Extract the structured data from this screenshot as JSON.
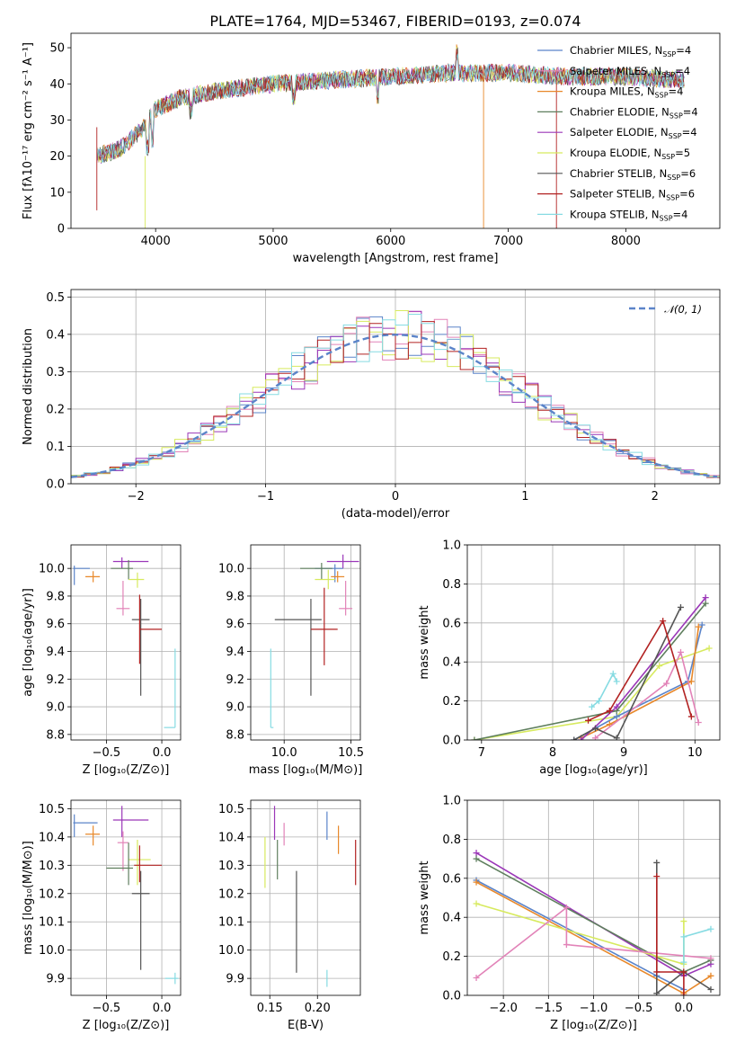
{
  "figure": {
    "title": "PLATE=1764, MJD=53467, FIBERID=0193, z=0.074"
  },
  "colors": {
    "Chabrier MILES": "#5b84c9",
    "Salpeter MILES": "#e283b8",
    "Kroupa MILES": "#e8882a",
    "Chabrier ELODIE": "#5f7f5e",
    "Salpeter ELODIE": "#9b37b8",
    "Kroupa ELODIE": "#d7ea5e",
    "Chabrier STELIB": "#555555",
    "Salpeter STELIB": "#b22222",
    "Kroupa STELIB": "#86dbe2"
  },
  "legend_spectrum": [
    {
      "key": "Chabrier MILES",
      "label": "Chabrier MILES, N",
      "sub": "SSP",
      "tail": "=4"
    },
    {
      "key": "Salpeter MILES",
      "label": "Salpeter MILES, N",
      "sub": "SSP",
      "tail": "=4"
    },
    {
      "key": "Kroupa MILES",
      "label": "Kroupa MILES, N",
      "sub": "SSP",
      "tail": "=4"
    },
    {
      "key": "Chabrier ELODIE",
      "label": "Chabrier ELODIE, N",
      "sub": "SSP",
      "tail": "=4"
    },
    {
      "key": "Salpeter ELODIE",
      "label": "Salpeter ELODIE, N",
      "sub": "SSP",
      "tail": "=4"
    },
    {
      "key": "Kroupa ELODIE",
      "label": "Kroupa ELODIE, N",
      "sub": "SSP",
      "tail": "=5"
    },
    {
      "key": "Chabrier STELIB",
      "label": "Chabrier STELIB, N",
      "sub": "SSP",
      "tail": "=6"
    },
    {
      "key": "Salpeter STELIB",
      "label": "Salpeter STELIB, N",
      "sub": "SSP",
      "tail": "=6"
    },
    {
      "key": "Kroupa STELIB",
      "label": "Kroupa STELIB, N",
      "sub": "SSP",
      "tail": "=4"
    }
  ],
  "chart_data": [
    {
      "id": "spectrum",
      "type": "line",
      "xlabel": "wavelength [Angstrom, rest frame]",
      "ylabel": "Flux [fλ10⁻¹⁷ erg cm⁻² s⁻¹ A⁻¹]",
      "xlim": [
        3280,
        8800
      ],
      "ylim": [
        0,
        54
      ],
      "xticks": [
        4000,
        5000,
        6000,
        7000,
        8000
      ],
      "yticks": [
        0,
        10,
        20,
        30,
        40,
        50
      ],
      "grid": false,
      "legend": "top-right",
      "continuum": {
        "x": [
          3500,
          3700,
          3900,
          4000,
          4200,
          4500,
          5000,
          5500,
          6000,
          6500,
          7000,
          7500,
          8000,
          8500
        ],
        "y": [
          20,
          22,
          28,
          33,
          36,
          38,
          40,
          41,
          42,
          43,
          43,
          42,
          42,
          41
        ]
      }
    },
    {
      "id": "residuals",
      "type": "histogram",
      "xlabel": "(data-model)/error",
      "ylabel": "Normed distribution",
      "xlim": [
        -2.5,
        2.5
      ],
      "ylim": [
        0,
        0.52
      ],
      "xticks": [
        -2,
        -1,
        0,
        1,
        2
      ],
      "yticks": [
        0.0,
        0.1,
        0.2,
        0.3,
        0.4,
        0.5
      ],
      "grid": true,
      "legend": "top-right",
      "legend_label": "𝒩(0, 1)",
      "bin_width": 0.1
    },
    {
      "id": "age-vs-Z",
      "type": "errorbar",
      "xlabel": "Z [log₁₀(Z/Z⊙)]",
      "ylabel": "age  [log₁₀(age/yr)]",
      "xlim": [
        -0.82,
        0.17
      ],
      "ylim": [
        8.76,
        10.17
      ],
      "xticks": [
        -0.5,
        0.0
      ],
      "yticks": [
        8.8,
        9.0,
        9.2,
        9.4,
        9.6,
        9.8,
        10.0
      ],
      "grid": true,
      "points": [
        {
          "key": "Chabrier MILES",
          "x": -0.79,
          "y": 10.0,
          "xe": [
            0.01,
            0.14
          ],
          "ye": [
            0.12,
            0.02
          ]
        },
        {
          "key": "Kroupa MILES",
          "x": -0.62,
          "y": 9.94,
          "xe": [
            0.07,
            0.06
          ],
          "ye": [
            0.04,
            0.04
          ]
        },
        {
          "key": "Salpeter ELODIE",
          "x": -0.36,
          "y": 10.05,
          "xe": [
            0.08,
            0.24
          ],
          "ye": [
            0.05,
            0.03
          ]
        },
        {
          "key": "Chabrier ELODIE",
          "x": -0.3,
          "y": 10.0,
          "xe": [
            0.16,
            0.04
          ],
          "ye": [
            0.08,
            0.06
          ]
        },
        {
          "key": "Kroupa ELODIE",
          "x": -0.22,
          "y": 9.92,
          "xe": [
            0.08,
            0.06
          ],
          "ye": [
            0.06,
            0.05
          ]
        },
        {
          "key": "Salpeter MILES",
          "x": -0.35,
          "y": 9.71,
          "xe": [
            0.06,
            0.06
          ],
          "ye": [
            0.05,
            0.2
          ]
        },
        {
          "key": "Chabrier STELIB",
          "x": -0.19,
          "y": 9.63,
          "xe": [
            0.08,
            0.08
          ],
          "ye": [
            0.55,
            0.15
          ]
        },
        {
          "key": "Salpeter STELIB",
          "x": -0.2,
          "y": 9.56,
          "xe": [
            0.0,
            0.2
          ],
          "ye": [
            0.25,
            0.25
          ]
        },
        {
          "key": "Kroupa STELIB",
          "x": 0.12,
          "y": 8.85,
          "xe": [
            0.1,
            0.0
          ],
          "ye": [
            0.0,
            0.57
          ]
        }
      ]
    },
    {
      "id": "age-vs-mass",
      "type": "errorbar",
      "xlabel": "mass [log₁₀(M/M⊙)]",
      "ylabel": "",
      "xlim": [
        9.75,
        10.57
      ],
      "ylim": [
        8.76,
        10.17
      ],
      "xticks": [
        10.0,
        10.5
      ],
      "yticks": [
        8.8,
        9.0,
        9.2,
        9.4,
        9.6,
        9.8,
        10.0
      ],
      "grid": true,
      "points": [
        {
          "key": "Salpeter ELODIE",
          "x": 10.44,
          "y": 10.05,
          "xe": [
            0.12,
            0.12
          ],
          "ye": [
            0.05,
            0.05
          ]
        },
        {
          "key": "Chabrier MILES",
          "x": 10.38,
          "y": 10.0,
          "xe": [
            0.15,
            0.06
          ],
          "ye": [
            0.1,
            0.03
          ]
        },
        {
          "key": "Chabrier ELODIE",
          "x": 10.28,
          "y": 10.0,
          "xe": [
            0.16,
            0.08
          ],
          "ye": [
            0.08,
            0.04
          ]
        },
        {
          "key": "Kroupa MILES",
          "x": 10.4,
          "y": 9.94,
          "xe": [
            0.05,
            0.05
          ],
          "ye": [
            0.04,
            0.04
          ]
        },
        {
          "key": "Kroupa ELODIE",
          "x": 10.33,
          "y": 9.92,
          "xe": [
            0.1,
            0.05
          ],
          "ye": [
            0.07,
            0.07
          ]
        },
        {
          "key": "Salpeter MILES",
          "x": 10.46,
          "y": 9.71,
          "xe": [
            0.05,
            0.05
          ],
          "ye": [
            0.05,
            0.2
          ]
        },
        {
          "key": "Chabrier STELIB",
          "x": 10.2,
          "y": 9.63,
          "xe": [
            0.27,
            0.08
          ],
          "ye": [
            0.55,
            0.15
          ]
        },
        {
          "key": "Salpeter STELIB",
          "x": 10.3,
          "y": 9.56,
          "xe": [
            0.1,
            0.1
          ],
          "ye": [
            0.26,
            0.3
          ]
        },
        {
          "key": "Kroupa STELIB",
          "x": 9.9,
          "y": 8.85,
          "xe": [
            0.0,
            0.02
          ],
          "ye": [
            0.0,
            0.57
          ]
        }
      ]
    },
    {
      "id": "weight-vs-age",
      "type": "line",
      "xlabel": "age  [log₁₀(age/yr)]",
      "ylabel": "mass weight",
      "xlim": [
        6.8,
        10.35
      ],
      "ylim": [
        0.0,
        1.0
      ],
      "xticks": [
        7,
        8,
        9,
        10
      ],
      "yticks": [
        0.0,
        0.2,
        0.4,
        0.6,
        0.8,
        1.0
      ],
      "grid": true,
      "series": [
        {
          "key": "Kroupa ELODIE",
          "x": [
            6.9,
            8.9,
            9.5,
            10.2
          ],
          "y": [
            0.0,
            0.12,
            0.38,
            0.47
          ]
        },
        {
          "key": "Kroupa STELIB",
          "x": [
            8.55,
            8.65,
            8.85,
            8.9
          ],
          "y": [
            0.17,
            0.2,
            0.34,
            0.3
          ]
        },
        {
          "key": "Chabrier MILES",
          "x": [
            8.3,
            8.9,
            9.9,
            10.1
          ],
          "y": [
            0.0,
            0.12,
            0.3,
            0.59
          ]
        },
        {
          "key": "Kroupa MILES",
          "x": [
            8.4,
            8.8,
            9.95,
            10.05
          ],
          "y": [
            0.01,
            0.08,
            0.3,
            0.58
          ]
        },
        {
          "key": "Chabrier ELODIE",
          "x": [
            6.9,
            8.9,
            10.15
          ],
          "y": [
            0.0,
            0.15,
            0.7
          ]
        },
        {
          "key": "Salpeter ELODIE",
          "x": [
            8.4,
            8.9,
            10.15
          ],
          "y": [
            0.0,
            0.17,
            0.73
          ]
        },
        {
          "key": "Salpeter MILES",
          "x": [
            8.6,
            9.6,
            9.8,
            10.05
          ],
          "y": [
            0.01,
            0.29,
            0.45,
            0.09
          ]
        },
        {
          "key": "Chabrier STELIB",
          "x": [
            8.3,
            8.6,
            8.9,
            9.8
          ],
          "y": [
            0.0,
            0.06,
            0.01,
            0.68
          ]
        },
        {
          "key": "Salpeter STELIB",
          "x": [
            8.5,
            8.8,
            9.55,
            9.95
          ],
          "y": [
            0.1,
            0.15,
            0.61,
            0.12
          ]
        }
      ]
    },
    {
      "id": "mass-vs-Z",
      "type": "errorbar",
      "xlabel": "Z [log₁₀(Z/Z⊙)]",
      "ylabel": "mass [log₁₀(M/M⊙)]",
      "xlim": [
        -0.82,
        0.17
      ],
      "ylim": [
        9.84,
        10.53
      ],
      "xticks": [
        -0.5,
        0.0
      ],
      "yticks": [
        9.9,
        10.0,
        10.1,
        10.2,
        10.3,
        10.4,
        10.5
      ],
      "grid": true,
      "points": [
        {
          "key": "Chabrier MILES",
          "x": -0.79,
          "y": 10.45,
          "xe": [
            0.01,
            0.21
          ],
          "ye": [
            0.05,
            0.03
          ]
        },
        {
          "key": "Salpeter ELODIE",
          "x": -0.36,
          "y": 10.46,
          "xe": [
            0.08,
            0.24
          ],
          "ye": [
            0.06,
            0.05
          ]
        },
        {
          "key": "Kroupa MILES",
          "x": -0.62,
          "y": 10.41,
          "xe": [
            0.07,
            0.06
          ],
          "ye": [
            0.04,
            0.03
          ]
        },
        {
          "key": "Salpeter MILES",
          "x": -0.35,
          "y": 10.38,
          "xe": [
            0.05,
            0.05
          ],
          "ye": [
            0.1,
            0.04
          ]
        },
        {
          "key": "Kroupa ELODIE",
          "x": -0.22,
          "y": 10.32,
          "xe": [
            0.08,
            0.12
          ],
          "ye": [
            0.09,
            0.07
          ]
        },
        {
          "key": "Chabrier ELODIE",
          "x": -0.3,
          "y": 10.29,
          "xe": [
            0.2,
            0.04
          ],
          "ye": [
            0.06,
            0.09
          ]
        },
        {
          "key": "Salpeter STELIB",
          "x": -0.2,
          "y": 10.3,
          "xe": [
            0.05,
            0.2
          ],
          "ye": [
            0.06,
            0.07
          ]
        },
        {
          "key": "Chabrier STELIB",
          "x": -0.19,
          "y": 10.2,
          "xe": [
            0.08,
            0.08
          ],
          "ye": [
            0.27,
            0.08
          ]
        },
        {
          "key": "Kroupa STELIB",
          "x": 0.12,
          "y": 9.9,
          "xe": [
            0.09,
            0.03
          ],
          "ye": [
            0.02,
            0.02
          ]
        }
      ]
    },
    {
      "id": "mass-vs-EBV",
      "type": "errorbar",
      "xlabel": "E(B-V)",
      "ylabel": "",
      "xlim": [
        0.13,
        0.245
      ],
      "ylim": [
        9.84,
        10.53
      ],
      "xticks": [
        0.15,
        0.2
      ],
      "yticks": [
        9.9,
        10.0,
        10.1,
        10.2,
        10.3,
        10.4,
        10.5
      ],
      "grid": true,
      "points": [
        {
          "key": "Salpeter ELODIE",
          "x": 0.155,
          "y": 10.45,
          "xe": [
            0,
            0
          ],
          "ye": [
            0.06,
            0.06
          ]
        },
        {
          "key": "Salpeter MILES",
          "x": 0.165,
          "y": 10.41,
          "xe": [
            0,
            0
          ],
          "ye": [
            0.04,
            0.04
          ]
        },
        {
          "key": "Chabrier MILES",
          "x": 0.21,
          "y": 10.44,
          "xe": [
            0,
            0
          ],
          "ye": [
            0.05,
            0.05
          ]
        },
        {
          "key": "Kroupa MILES",
          "x": 0.222,
          "y": 10.39,
          "xe": [
            0,
            0
          ],
          "ye": [
            0.05,
            0.05
          ]
        },
        {
          "key": "Kroupa ELODIE",
          "x": 0.145,
          "y": 10.31,
          "xe": [
            0,
            0
          ],
          "ye": [
            0.09,
            0.09
          ]
        },
        {
          "key": "Chabrier ELODIE",
          "x": 0.158,
          "y": 10.32,
          "xe": [
            0,
            0
          ],
          "ye": [
            0.07,
            0.07
          ]
        },
        {
          "key": "Chabrier STELIB",
          "x": 0.178,
          "y": 10.1,
          "xe": [
            0,
            0
          ],
          "ye": [
            0.18,
            0.18
          ]
        },
        {
          "key": "Salpeter STELIB",
          "x": 0.24,
          "y": 10.31,
          "xe": [
            0,
            0
          ],
          "ye": [
            0.08,
            0.08
          ]
        },
        {
          "key": "Kroupa STELIB",
          "x": 0.21,
          "y": 9.9,
          "xe": [
            0,
            0
          ],
          "ye": [
            0.03,
            0.03
          ]
        }
      ]
    },
    {
      "id": "weight-vs-Z",
      "type": "line",
      "xlabel": "Z [log₁₀(Z/Z⊙)]",
      "ylabel": "mass weight",
      "xlim": [
        -2.4,
        0.4
      ],
      "ylim": [
        0.0,
        1.0
      ],
      "xticks": [
        -2.0,
        -1.5,
        -1.0,
        -0.5,
        0.0
      ],
      "yticks": [
        0.0,
        0.2,
        0.4,
        0.6,
        0.8,
        1.0
      ],
      "grid": true,
      "series": [
        {
          "key": "Chabrier MILES",
          "x": [
            -2.3,
            -0.3,
            0.0
          ],
          "y": [
            0.59,
            0.1,
            0.03
          ]
        },
        {
          "key": "Kroupa MILES",
          "x": [
            -2.3,
            0.0,
            0.3
          ],
          "y": [
            0.58,
            0.01,
            0.1
          ]
        },
        {
          "key": "Salpeter ELODIE",
          "x": [
            -2.3,
            0.0,
            0.3
          ],
          "y": [
            0.73,
            0.1,
            0.16
          ]
        },
        {
          "key": "Chabrier ELODIE",
          "x": [
            -2.3,
            0.0,
            0.3
          ],
          "y": [
            0.7,
            0.12,
            0.18
          ]
        },
        {
          "key": "Kroupa ELODIE",
          "x": [
            -2.3,
            0.0,
            0.0
          ],
          "y": [
            0.47,
            0.16,
            0.38
          ]
        },
        {
          "key": "Salpeter MILES",
          "x": [
            -2.3,
            -1.3,
            -1.3,
            0.3
          ],
          "y": [
            0.09,
            0.45,
            0.26,
            0.19
          ]
        },
        {
          "key": "Kroupa STELIB",
          "x": [
            0.0,
            0.0,
            0.3
          ],
          "y": [
            0.17,
            0.3,
            0.34
          ]
        },
        {
          "key": "Chabrier STELIB",
          "x": [
            -0.3,
            -0.3,
            0.0,
            0.3
          ],
          "y": [
            0.68,
            0.01,
            0.12,
            0.03
          ]
        },
        {
          "key": "Salpeter STELIB",
          "x": [
            -0.3,
            -0.3,
            0.0,
            0.0
          ],
          "y": [
            0.61,
            0.12,
            0.12,
            0.0
          ]
        }
      ]
    }
  ]
}
